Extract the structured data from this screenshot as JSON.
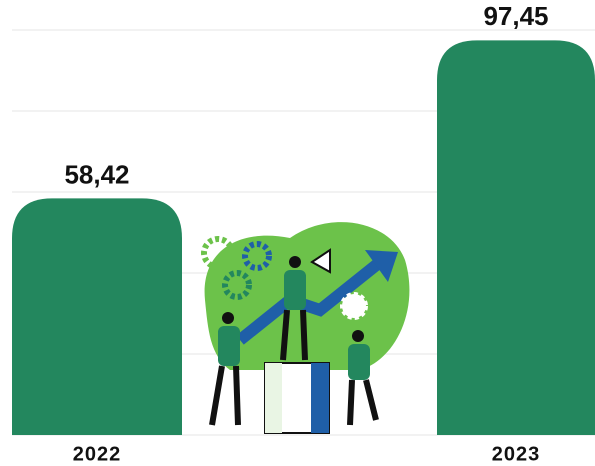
{
  "chart_data": {
    "type": "bar",
    "categories": [
      "2022",
      "2023"
    ],
    "values": [
      58.42,
      97.45
    ],
    "value_labels": [
      "58,42",
      "97,45"
    ],
    "color": "#23875e",
    "ylim": [
      0,
      100
    ],
    "yticks": [
      0,
      20,
      40,
      60,
      80,
      100
    ],
    "grid": true
  }
}
